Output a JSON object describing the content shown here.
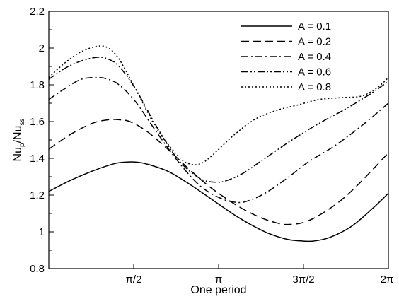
{
  "chart_data": {
    "type": "line",
    "title": "",
    "xlabel": "One period",
    "ylabel": {
      "main": "Nu",
      "sub1": "p",
      "mid": "/Nu",
      "sub2": "ss"
    },
    "xlim": [
      0,
      6.2832
    ],
    "ylim": [
      0.8,
      2.2
    ],
    "xticks": [
      {
        "value": 1.5708,
        "label": "π/2"
      },
      {
        "value": 3.1416,
        "label": "π"
      },
      {
        "value": 4.7124,
        "label": "3π/2"
      },
      {
        "value": 6.2832,
        "label": "2π"
      }
    ],
    "yticks": [
      {
        "value": 0.8,
        "label": "0.8"
      },
      {
        "value": 1.0,
        "label": "1"
      },
      {
        "value": 1.2,
        "label": "1.2"
      },
      {
        "value": 1.4,
        "label": "1.4"
      },
      {
        "value": 1.6,
        "label": "1.6"
      },
      {
        "value": 1.8,
        "label": "1.8"
      },
      {
        "value": 2.0,
        "label": "2"
      },
      {
        "value": 2.2,
        "label": "2.2"
      }
    ],
    "grid": false,
    "legend_position": "top-right",
    "series": [
      {
        "name": "A = 0.1",
        "dash": "none",
        "x": [
          0,
          0.4,
          0.8,
          1.2,
          1.45,
          1.6,
          1.8,
          2.2,
          2.6,
          3.0,
          3.5,
          4.0,
          4.4,
          4.7,
          4.9,
          5.2,
          5.6,
          6.0,
          6.2832
        ],
        "y": [
          1.22,
          1.28,
          1.33,
          1.37,
          1.38,
          1.38,
          1.37,
          1.33,
          1.26,
          1.18,
          1.08,
          1.0,
          0.96,
          0.95,
          0.95,
          0.97,
          1.03,
          1.13,
          1.21
        ]
      },
      {
        "name": "A = 0.2",
        "dash": "11,6",
        "x": [
          0,
          0.4,
          0.8,
          1.1,
          1.3,
          1.5,
          1.8,
          2.2,
          2.6,
          3.0,
          3.5,
          3.9,
          4.2,
          4.4,
          4.7,
          5.0,
          5.4,
          5.8,
          6.2832
        ],
        "y": [
          1.45,
          1.53,
          1.59,
          1.61,
          1.61,
          1.6,
          1.55,
          1.45,
          1.34,
          1.24,
          1.14,
          1.08,
          1.05,
          1.04,
          1.05,
          1.09,
          1.17,
          1.28,
          1.43
        ]
      },
      {
        "name": "A = 0.4",
        "dash": "10,4,2,4",
        "x": [
          0,
          0.3,
          0.6,
          0.9,
          1.1,
          1.3,
          1.6,
          2.0,
          2.4,
          2.8,
          3.2,
          3.5,
          3.7,
          4.0,
          4.4,
          4.8,
          5.3,
          5.8,
          6.2832
        ],
        "y": [
          1.72,
          1.78,
          1.83,
          1.84,
          1.83,
          1.8,
          1.71,
          1.54,
          1.38,
          1.25,
          1.18,
          1.16,
          1.17,
          1.21,
          1.29,
          1.38,
          1.47,
          1.58,
          1.7
        ]
      },
      {
        "name": "A = 0.6",
        "dash": "10,3,2,3,2,3",
        "x": [
          0,
          0.3,
          0.6,
          0.9,
          1.1,
          1.3,
          1.6,
          2.0,
          2.4,
          2.8,
          3.1,
          3.3,
          3.6,
          4.0,
          4.5,
          5.0,
          5.5,
          6.0,
          6.2832
        ],
        "y": [
          1.83,
          1.89,
          1.93,
          1.95,
          1.94,
          1.9,
          1.78,
          1.57,
          1.39,
          1.29,
          1.27,
          1.28,
          1.32,
          1.4,
          1.5,
          1.59,
          1.67,
          1.76,
          1.82
        ]
      },
      {
        "name": "A = 0.8",
        "dash": "2,3",
        "x": [
          0,
          0.3,
          0.6,
          0.9,
          1.1,
          1.3,
          1.6,
          2.0,
          2.4,
          2.6,
          2.8,
          3.0,
          3.4,
          3.8,
          4.2,
          4.6,
          5.0,
          5.4,
          5.8,
          6.1,
          6.2832
        ],
        "y": [
          1.84,
          1.92,
          1.98,
          2.01,
          2.0,
          1.94,
          1.78,
          1.56,
          1.41,
          1.37,
          1.37,
          1.41,
          1.52,
          1.61,
          1.66,
          1.69,
          1.72,
          1.73,
          1.74,
          1.79,
          1.84
        ]
      }
    ]
  }
}
